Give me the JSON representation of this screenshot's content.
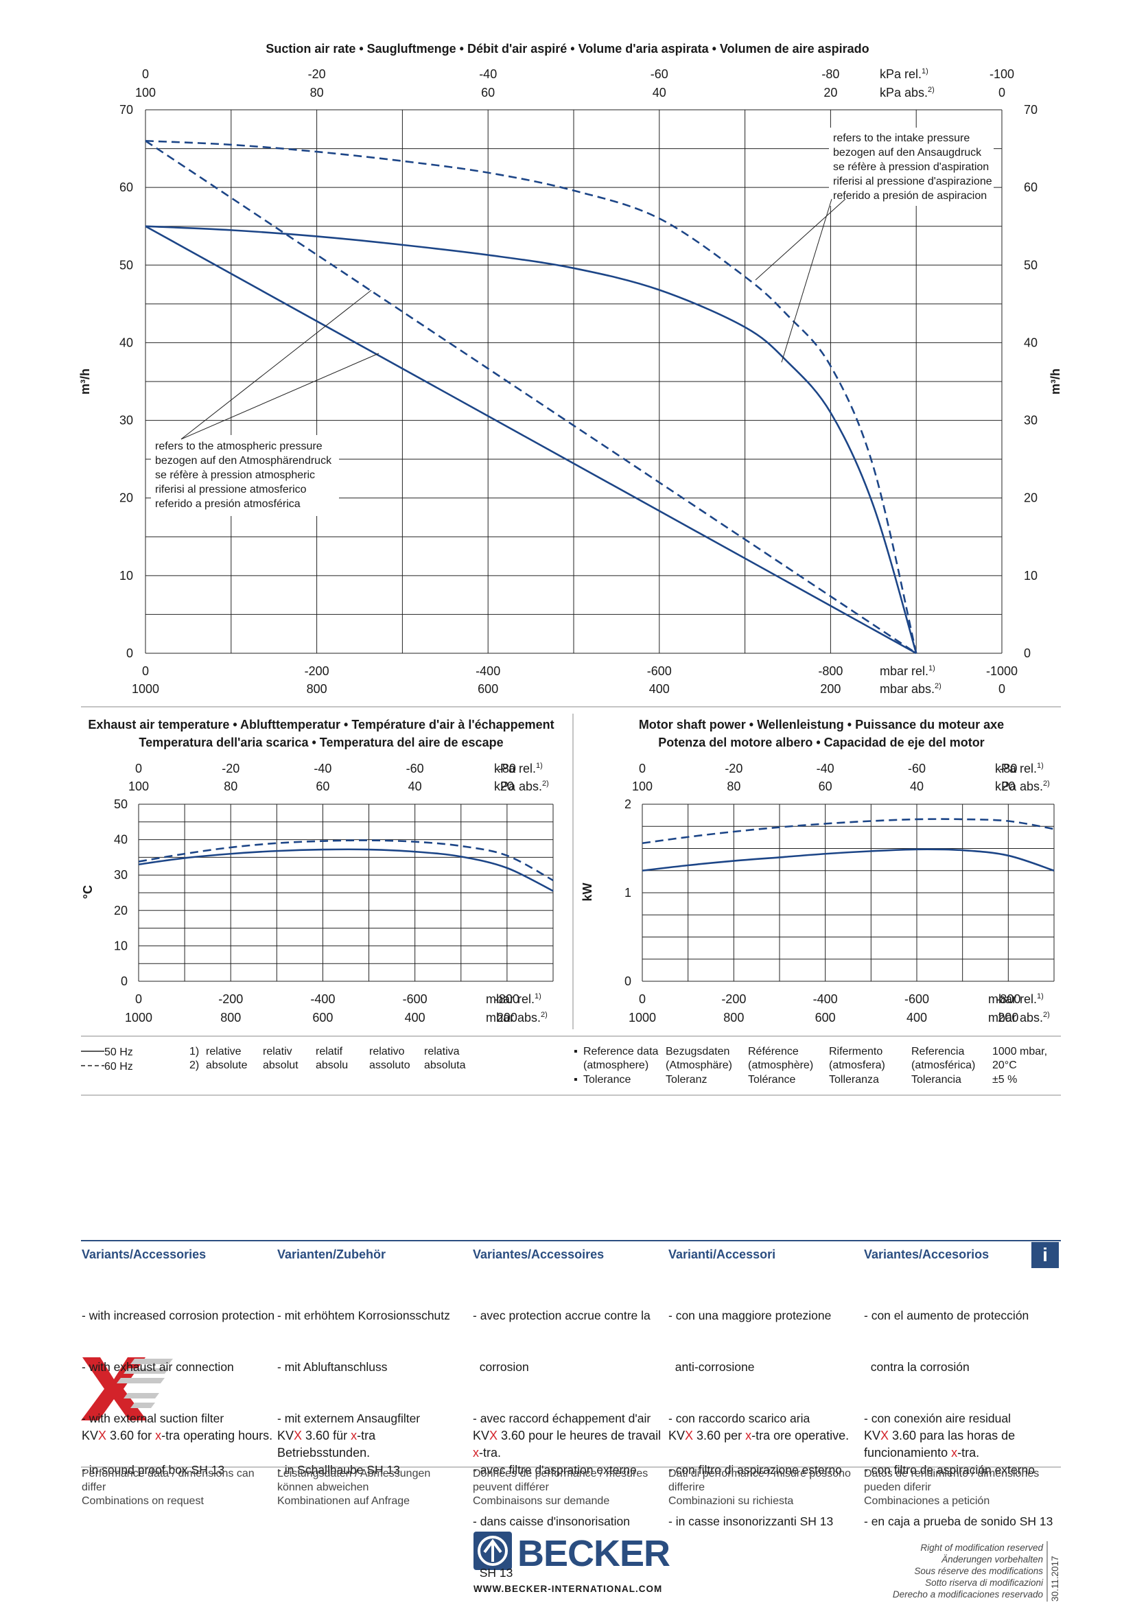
{
  "colors": {
    "curve": "#1c4587",
    "heading_blue": "#2a4d80",
    "xtra_red": "#d3232a"
  },
  "chart_data": [
    {
      "id": "suction",
      "type": "line",
      "title": "Suction air rate  •  Saugluftmenge  •  Débit d'air aspiré  •  Volume d'aria aspirata  •  Volumen de aire aspirado",
      "ylabel": "m³/h",
      "xlabel_rel": "mbar rel.",
      "xlabel_abs": "mbar abs.",
      "x_sup_rel": "1)",
      "x_sup_abs": "2)",
      "top_label_rel": "kPa rel.",
      "top_label_abs": "kPa abs.",
      "xlim": [
        0,
        -1000
      ],
      "ylim": [
        0,
        70
      ],
      "x_ticks_rel": [
        "0",
        "-200",
        "-400",
        "-600",
        "-800",
        "-1000"
      ],
      "x_ticks_abs": [
        "1000",
        "800",
        "600",
        "400",
        "200",
        "0"
      ],
      "top_ticks_rel": [
        "0",
        "-20",
        "-40",
        "-60",
        "-80",
        "-100"
      ],
      "top_ticks_abs": [
        "100",
        "80",
        "60",
        "40",
        "20",
        "0"
      ],
      "y_ticks": [
        "0",
        "10",
        "20",
        "30",
        "40",
        "50",
        "60",
        "70"
      ],
      "grid": true,
      "annotations": {
        "intake": [
          "refers to the intake pressure",
          "bezogen auf den Ansaugdruck",
          "se réfère à pression d'aspiration",
          "riferisi al pressione d'aspirazione",
          "referido a presión de aspiracion"
        ],
        "atmospheric": [
          "refers to the atmospheric pressure",
          "bezogen auf den Atmosphärendruck",
          "se réfère à pression atmospheric",
          "riferisi al pressione atmosferico",
          "referido a presión atmosférica"
        ]
      },
      "series": [
        {
          "frequency": "50 Hz",
          "reference": "intake",
          "x": [
            0,
            -100,
            -200,
            -300,
            -400,
            -500,
            -600,
            -700,
            -750,
            -800,
            -850,
            -900
          ],
          "y": [
            55,
            54.5,
            53.7,
            52.6,
            51.3,
            49.6,
            46.8,
            42.0,
            37.5,
            31.0,
            19.0,
            0
          ]
        },
        {
          "frequency": "60 Hz",
          "reference": "intake",
          "x": [
            0,
            -100,
            -200,
            -300,
            -400,
            -500,
            -600,
            -700,
            -750,
            -800,
            -850,
            -900
          ],
          "y": [
            66,
            65.5,
            64.6,
            63.4,
            61.9,
            59.6,
            56.0,
            48.5,
            43.5,
            37.0,
            24.0,
            0
          ]
        },
        {
          "frequency": "50 Hz",
          "reference": "atmospheric",
          "x": [
            0,
            -900
          ],
          "y": [
            55,
            0
          ]
        },
        {
          "frequency": "60 Hz",
          "reference": "atmospheric",
          "x": [
            0,
            -900
          ],
          "y": [
            66,
            0
          ]
        }
      ]
    },
    {
      "id": "exhaust",
      "type": "line",
      "title_line1": "Exhaust air temperature  •  Ablufttemperatur  •  Température d'air à l'échappement",
      "title_line2": "Temperatura dell'aria scarica  •  Temperatura del aire de escape",
      "ylabel": "°C",
      "xlabel_rel": "mbar rel.",
      "xlabel_abs": "mbar abs.",
      "top_label_rel": "kPa rel.",
      "top_label_abs": "kPa abs.",
      "xlim": [
        0,
        -1000
      ],
      "ylim": [
        0,
        50
      ],
      "x_ticks_rel": [
        "0",
        "-200",
        "-400",
        "-600",
        "-800"
      ],
      "x_ticks_abs": [
        "1000",
        "800",
        "600",
        "400",
        "200"
      ],
      "top_ticks_rel": [
        "0",
        "-20",
        "-40",
        "-60",
        "-80"
      ],
      "top_ticks_abs": [
        "100",
        "80",
        "60",
        "40",
        "20"
      ],
      "y_ticks": [
        "0",
        "10",
        "20",
        "30",
        "40",
        "50"
      ],
      "series": [
        {
          "frequency": "50 Hz",
          "x": [
            0,
            -100,
            -200,
            -300,
            -400,
            -500,
            -600,
            -700,
            -800,
            -900
          ],
          "y": [
            33.0,
            34.8,
            36.0,
            36.8,
            37.2,
            37.2,
            36.6,
            35.2,
            32.0,
            25.5
          ]
        },
        {
          "frequency": "60 Hz",
          "x": [
            0,
            -100,
            -200,
            -300,
            -400,
            -500,
            -600,
            -700,
            -800,
            -900
          ],
          "y": [
            33.8,
            36.0,
            37.8,
            39.0,
            39.6,
            39.8,
            39.4,
            38.2,
            35.5,
            28.5
          ]
        }
      ]
    },
    {
      "id": "power",
      "type": "line",
      "title_line1": "Motor shaft power  •  Wellenleistung  •  Puissance du moteur axe",
      "title_line2": "Potenza del motore albero  •  Capacidad de eje del motor",
      "ylabel": "kW",
      "xlabel_rel": "mbar rel.",
      "xlabel_abs": "mbar abs.",
      "top_label_rel": "kPa rel.",
      "top_label_abs": "kPa abs.",
      "xlim": [
        0,
        -1000
      ],
      "ylim": [
        0,
        2
      ],
      "x_ticks_rel": [
        "0",
        "-200",
        "-400",
        "-600",
        "-800"
      ],
      "x_ticks_abs": [
        "1000",
        "800",
        "600",
        "400",
        "200"
      ],
      "top_ticks_rel": [
        "0",
        "-20",
        "-40",
        "-60",
        "-80"
      ],
      "top_ticks_abs": [
        "100",
        "80",
        "60",
        "40",
        "20"
      ],
      "y_ticks": [
        "0",
        "1",
        "2"
      ],
      "series": [
        {
          "frequency": "50 Hz",
          "x": [
            0,
            -100,
            -200,
            -300,
            -400,
            -500,
            -600,
            -700,
            -800,
            -900
          ],
          "y": [
            1.25,
            1.31,
            1.36,
            1.4,
            1.44,
            1.47,
            1.49,
            1.48,
            1.42,
            1.25
          ]
        },
        {
          "frequency": "60 Hz",
          "x": [
            0,
            -100,
            -200,
            -300,
            -400,
            -500,
            -600,
            -700,
            -800,
            -900
          ],
          "y": [
            1.56,
            1.63,
            1.69,
            1.74,
            1.78,
            1.81,
            1.83,
            1.83,
            1.81,
            1.72
          ]
        }
      ]
    }
  ],
  "legend": {
    "hz50": "50 Hz",
    "hz60": "60 Hz",
    "notes": [
      [
        "1)",
        "relative",
        "relativ",
        "relatif",
        "relativo",
        "relativa"
      ],
      [
        "2)",
        "absolute",
        "absolut",
        "absolu",
        "assoluto",
        "absoluta"
      ]
    ],
    "reference": {
      "bullet1": [
        "Reference data",
        "Bezugsdaten",
        "Référence",
        "Rifermento",
        "Referencia",
        "1000 mbar,"
      ],
      "bullet1b": [
        "(atmosphere)",
        "(Atmosphäre)",
        "(atmosphère)",
        "(atmosfera)",
        "(atmosférica)",
        "20°C"
      ],
      "bullet2": [
        "Tolerance",
        "Toleranz",
        "Tolérance",
        "Tolleranza",
        "Tolerancia",
        "±5 %"
      ]
    }
  },
  "variants": {
    "info": "i",
    "columns": [
      {
        "heading": "Variants/Accessories",
        "items": [
          "- with increased corrosion protection",
          "- with exhaust air connection",
          "- with external suction filter",
          "- in sound proof box SH 13"
        ],
        "xtra_pre": "KV",
        "xtra_x": "X",
        "xtra_mid": " 3.60 for ",
        "xtra_x2": "x",
        "xtra_post": "-tra operating hours.",
        "disclaimer": [
          "Performance data / dimensions can",
          "differ",
          "Combinations on request"
        ]
      },
      {
        "heading": "Varianten/Zubehör",
        "items": [
          "- mit erhöhtem Korrosionsschutz",
          "- mit Abluftanschluss",
          "- mit externem Ansaugfilter",
          "- in Schallhaube SH 13"
        ],
        "xtra_pre": "KV",
        "xtra_x": "X",
        "xtra_mid": " 3.60 für ",
        "xtra_x2": "x",
        "xtra_post": "-tra Betriebsstunden.",
        "disclaimer": [
          "Leistungsdaten / Abmessungen",
          "können abweichen",
          "Kombinationen auf Anfrage"
        ]
      },
      {
        "heading": "Variantes/Accessoires",
        "items": [
          "- avec protection accrue contre la",
          "  corrosion",
          "- avec raccord échappement d'air",
          "- avec filtre d'aspration externe",
          "- dans caisse d'insonorisation",
          "  SH 13"
        ],
        "xtra_pre": "KV",
        "xtra_x": "X",
        "xtra_mid": " 3.60 pour le heures de travail ",
        "xtra_x2": "x",
        "xtra_post": "-tra.",
        "disclaimer": [
          "Données de performance / mesures",
          "peuvent différer",
          "Combinaisons sur demande"
        ]
      },
      {
        "heading": "Varianti/Accessori",
        "items": [
          "- con una maggiore protezione",
          "  anti-corrosione",
          "- con raccordo scarico aria",
          "- con filtro di aspirazione esterno",
          "- in casse insonorizzanti SH 13"
        ],
        "xtra_pre": "KV",
        "xtra_x": "X",
        "xtra_mid": " 3.60 per ",
        "xtra_x2": "x",
        "xtra_post": "-tra ore operative.",
        "disclaimer": [
          "Dati di performance / misure possono",
          "differire",
          "Combinazioni su richiesta"
        ]
      },
      {
        "heading": "Variantes/Accesorios",
        "items": [
          "- con el aumento de protección",
          "  contra la corrosión",
          "- con conexión aire residual",
          "- con filtro de aspiración externo",
          "- en caja a prueba de sonido SH 13"
        ],
        "xtra_pre": "KV",
        "xtra_x": "X",
        "xtra_mid": " 3.60 para las horas de funcionamiento ",
        "xtra_x2": "x",
        "xtra_post": "-tra.",
        "disclaimer": [
          "Datos de rendimiento / dimensiones",
          "pueden diferir",
          "Combinaciones a petición"
        ]
      }
    ]
  },
  "footer": {
    "brand": "BECKER",
    "website": "WWW.BECKER-INTERNATIONAL.COM",
    "rights": [
      "Right of modification reserved",
      "Änderungen vorbehalten",
      "Sous réserve des modifications",
      "Sotto riserva di modificazioni",
      "Derecho a modificaciones reservado"
    ],
    "date": "30.11.2017"
  }
}
